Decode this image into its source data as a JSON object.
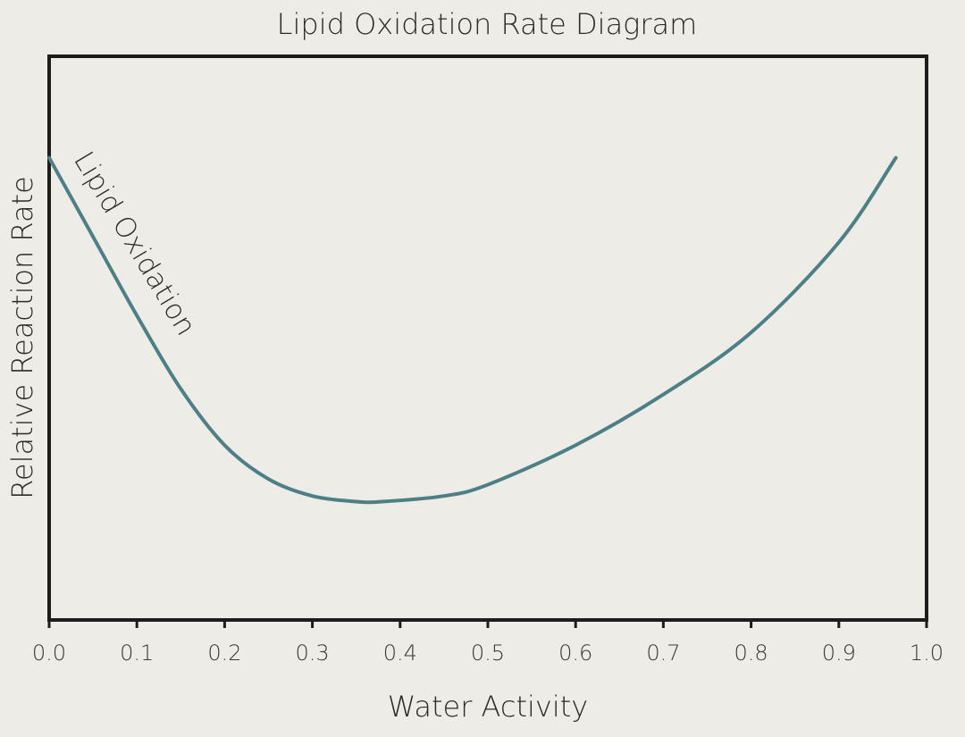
{
  "chart_data": {
    "type": "line",
    "title": "Lipid Oxidation Rate Diagram",
    "xlabel": "Water Activity",
    "ylabel": "Relative Reaction Rate",
    "xlim": [
      0.0,
      1.0
    ],
    "ylim": [
      0,
      1
    ],
    "x_ticks": [
      "0.0",
      "0.1",
      "0.2",
      "0.3",
      "0.4",
      "0.5",
      "0.6",
      "0.7",
      "0.8",
      "0.9",
      "1.0"
    ],
    "y_ticks": [],
    "grid": false,
    "series": [
      {
        "name": "Lipid Oxidation",
        "color": "#4d7f86",
        "x": [
          0.0,
          0.05,
          0.1,
          0.15,
          0.2,
          0.25,
          0.3,
          0.35,
          0.38,
          0.45,
          0.5,
          0.6,
          0.7,
          0.8,
          0.9,
          0.965
        ],
        "y": [
          0.82,
          0.68,
          0.54,
          0.41,
          0.31,
          0.25,
          0.22,
          0.21,
          0.21,
          0.22,
          0.24,
          0.31,
          0.4,
          0.51,
          0.67,
          0.82
        ]
      }
    ],
    "annotations": [
      {
        "text": "Lipid Oxidation",
        "near_series": "Lipid Oxidation"
      }
    ]
  }
}
